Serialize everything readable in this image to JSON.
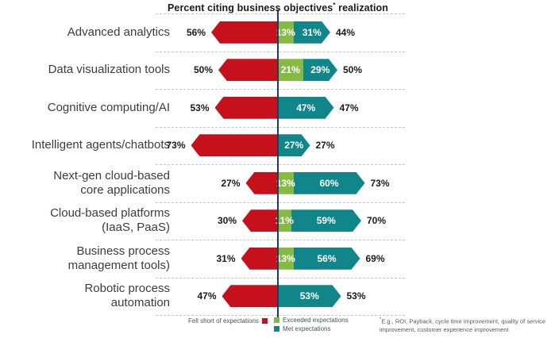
{
  "title": {
    "before_sup": "Percent citing business objectives",
    "sup": "*",
    "after_sup": " realization"
  },
  "legend": {
    "fell_short": "Fell short of expectations",
    "exceeded": "Exceeded expectations",
    "met": "Met expectations"
  },
  "footnote": {
    "sup": "*",
    "text": "E.g., ROI, Payback, cycle time improvement, quality of service improvement, customer experience improvement"
  },
  "colors": {
    "fell_short": "#c6101c",
    "exceeded": "#85bb44",
    "met": "#10868b",
    "centerline": "#1e3a5f"
  },
  "chart_data": {
    "type": "bar",
    "variant": "horizontal-diverging-stacked",
    "title": "Percent citing business objectives* realization",
    "xlabel": "",
    "ylabel": "",
    "unit": "percent",
    "axis_center": 0,
    "xlim": [
      -80,
      80
    ],
    "grid": "dashed-row-separators",
    "legend_position": "bottom",
    "series": [
      {
        "name": "Fell short of expectations",
        "direction": "left",
        "values": [
          56,
          50,
          53,
          73,
          27,
          30,
          31,
          47
        ]
      },
      {
        "name": "Exceeded expectations",
        "direction": "right",
        "values": [
          13,
          21,
          0,
          0,
          13,
          11,
          13,
          0
        ]
      },
      {
        "name": "Met expectations",
        "direction": "right",
        "values": [
          31,
          29,
          47,
          27,
          60,
          59,
          56,
          53
        ]
      }
    ],
    "rows": [
      {
        "label_lines": [
          "Advanced analytics"
        ],
        "fell_short": 56,
        "exceeded": 13,
        "met": 31,
        "left_label": "56%",
        "exceeded_label": "13%",
        "met_label": "31%",
        "right_label": "44%"
      },
      {
        "label_lines": [
          "Data visualization tools"
        ],
        "fell_short": 50,
        "exceeded": 21,
        "met": 29,
        "left_label": "50%",
        "exceeded_label": "21%",
        "met_label": "29%",
        "right_label": "50%"
      },
      {
        "label_lines": [
          "Cognitive computing/AI"
        ],
        "fell_short": 53,
        "exceeded": 0,
        "met": 47,
        "left_label": "53%",
        "exceeded_label": "",
        "met_label": "47%",
        "right_label": "47%"
      },
      {
        "label_lines": [
          "Intelligent agents/chatbots"
        ],
        "fell_short": 73,
        "exceeded": 0,
        "met": 27,
        "left_label": "73%",
        "exceeded_label": "",
        "met_label": "27%",
        "right_label": "27%"
      },
      {
        "label_lines": [
          "Next-gen cloud-based",
          "core applications"
        ],
        "fell_short": 27,
        "exceeded": 13,
        "met": 60,
        "left_label": "27%",
        "exceeded_label": "13%",
        "met_label": "60%",
        "right_label": "73%"
      },
      {
        "label_lines": [
          "Cloud-based platforms",
          "(IaaS, PaaS)"
        ],
        "fell_short": 30,
        "exceeded": 11,
        "met": 59,
        "left_label": "30%",
        "exceeded_label": "11%",
        "met_label": "59%",
        "right_label": "70%"
      },
      {
        "label_lines": [
          "Business process",
          "management tools)"
        ],
        "fell_short": 31,
        "exceeded": 13,
        "met": 56,
        "left_label": "31%",
        "exceeded_label": "13%",
        "met_label": "56%",
        "right_label": "69%"
      },
      {
        "label_lines": [
          "Robotic process",
          "automation"
        ],
        "fell_short": 47,
        "exceeded": 0,
        "met": 53,
        "left_label": "47%",
        "exceeded_label": "",
        "met_label": "53%",
        "right_label": "53%"
      }
    ]
  }
}
